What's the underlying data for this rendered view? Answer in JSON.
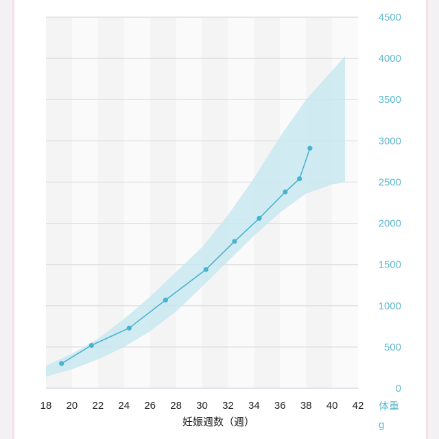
{
  "chart_data": {
    "type": "line",
    "xlabel": "妊娠週数（週）",
    "ylabel": "体重",
    "yunit": "g",
    "xlim": [
      18,
      42
    ],
    "ylim": [
      0,
      4500
    ],
    "xticks": [
      18,
      20,
      22,
      24,
      26,
      28,
      30,
      32,
      34,
      36,
      38,
      40,
      42
    ],
    "xtick_labels": [
      "18",
      "20",
      "22",
      "24",
      "26",
      "28",
      "30",
      "32",
      "34",
      "36",
      "38",
      "40",
      "42"
    ],
    "yticks": [
      0,
      500,
      1000,
      1500,
      2000,
      2500,
      3000,
      3500,
      4000,
      4500
    ],
    "ytick_labels": [
      "0",
      "500",
      "1000",
      "1500",
      "2000",
      "2500",
      "3000",
      "3500",
      "4000",
      "4500"
    ],
    "grid": true,
    "yaxis_side": "right",
    "band": {
      "x": [
        18,
        20,
        22,
        24,
        26,
        28,
        30,
        32,
        34,
        36,
        38,
        40,
        41
      ],
      "lower": [
        140,
        230,
        350,
        500,
        690,
        930,
        1230,
        1540,
        1850,
        2130,
        2360,
        2470,
        2500
      ],
      "upper": [
        275,
        420,
        600,
        840,
        1110,
        1410,
        1710,
        2100,
        2550,
        3050,
        3500,
        3850,
        4030
      ]
    },
    "series": [
      {
        "x": [
          19.2,
          21.5,
          24.4,
          27.2,
          30.3,
          32.5,
          34.4,
          36.4,
          37.5,
          38.3
        ],
        "y": [
          300,
          520,
          730,
          1070,
          1440,
          1780,
          2060,
          2380,
          2540,
          2910
        ]
      }
    ],
    "colors": {
      "line": "#49b3cf",
      "band": "#c9e8f0",
      "axis_text": "#5db8cc",
      "stripe_dark": "#f4f4f4",
      "stripe_light": "#fafafa"
    }
  }
}
